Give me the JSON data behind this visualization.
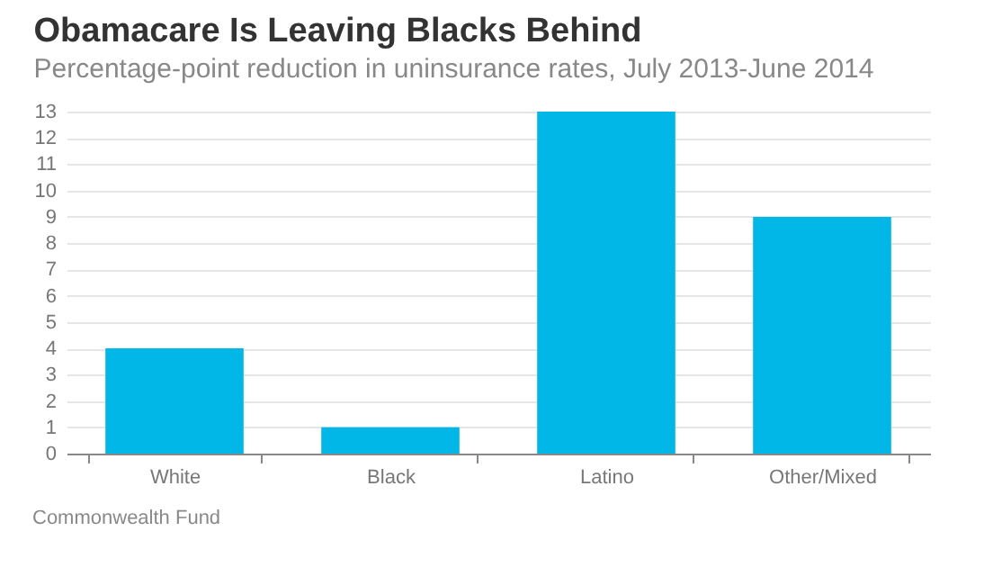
{
  "chart_data": {
    "type": "bar",
    "title": "Obamacare Is Leaving Blacks Behind",
    "subtitle": "Percentage-point reduction in uninsurance rates, July 2013-June 2014",
    "categories": [
      "White",
      "Black",
      "Latino",
      "Other/Mixed"
    ],
    "values": [
      4,
      1,
      13,
      9
    ],
    "color": "#00b7e8",
    "ylim": [
      0,
      13
    ],
    "yticks": [
      0,
      1,
      2,
      3,
      4,
      5,
      6,
      7,
      8,
      9,
      10,
      11,
      12,
      13
    ],
    "grid": "y",
    "annotations": [
      "Commonwealth Fund"
    ]
  }
}
